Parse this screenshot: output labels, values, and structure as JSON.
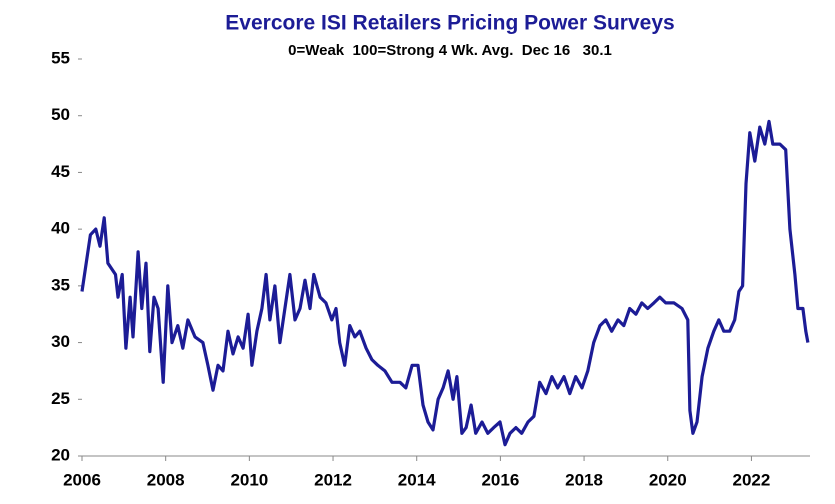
{
  "chart_data": {
    "type": "line",
    "title": "Evercore ISI Retailers Pricing Power Surveys",
    "subtitle": "0=Weak  100=Strong 4 Wk. Avg.  Dec 16   30.1",
    "x": [
      2006.0,
      2006.2,
      2006.33,
      2006.43,
      2006.53,
      2006.62,
      2006.8,
      2006.86,
      2006.96,
      2007.05,
      2007.15,
      2007.22,
      2007.34,
      2007.43,
      2007.53,
      2007.62,
      2007.72,
      2007.82,
      2007.94,
      2008.05,
      2008.15,
      2008.29,
      2008.41,
      2008.53,
      2008.7,
      2008.89,
      2009.01,
      2009.13,
      2009.25,
      2009.37,
      2009.49,
      2009.61,
      2009.73,
      2009.85,
      2009.97,
      2010.06,
      2010.18,
      2010.3,
      2010.4,
      2010.49,
      2010.61,
      2010.73,
      2010.85,
      2010.97,
      2011.09,
      2011.21,
      2011.33,
      2011.45,
      2011.54,
      2011.69,
      2011.83,
      2011.97,
      2012.07,
      2012.16,
      2012.28,
      2012.4,
      2012.52,
      2012.64,
      2012.79,
      2012.93,
      2013.07,
      2013.24,
      2013.41,
      2013.6,
      2013.74,
      2013.89,
      2014.03,
      2014.15,
      2014.27,
      2014.39,
      2014.51,
      2014.63,
      2014.75,
      2014.87,
      2014.96,
      2015.08,
      2015.18,
      2015.3,
      2015.41,
      2015.56,
      2015.7,
      2015.84,
      2015.99,
      2016.11,
      2016.23,
      2016.37,
      2016.51,
      2016.66,
      2016.8,
      2016.94,
      2017.09,
      2017.23,
      2017.37,
      2017.52,
      2017.66,
      2017.8,
      2017.95,
      2018.09,
      2018.23,
      2018.38,
      2018.52,
      2018.66,
      2018.81,
      2018.95,
      2019.09,
      2019.24,
      2019.38,
      2019.52,
      2019.67,
      2019.81,
      2019.95,
      2020.15,
      2020.34,
      2020.48,
      2020.53,
      2020.6,
      2020.7,
      2020.82,
      2020.96,
      2021.1,
      2021.22,
      2021.34,
      2021.48,
      2021.6,
      2021.7,
      2021.79,
      2021.87,
      2021.96,
      2022.08,
      2022.2,
      2022.32,
      2022.42,
      2022.51,
      2022.68,
      2022.82,
      2022.92,
      2023.04,
      2023.11,
      2023.23,
      2023.3,
      2023.35
    ],
    "series": [
      {
        "name": "Pricing Power",
        "color": "#1c1c96",
        "values": [
          34.5,
          39.5,
          40,
          38.5,
          41,
          37,
          36,
          34,
          36,
          29.5,
          34,
          30.5,
          38,
          33,
          37,
          29.2,
          34,
          33,
          26.5,
          35,
          30,
          31.5,
          29.5,
          32,
          30.5,
          30,
          28,
          25.8,
          28,
          27.5,
          31,
          29,
          30.5,
          29.5,
          32.5,
          28,
          31,
          33,
          36,
          32,
          35,
          30,
          33,
          36,
          32,
          33,
          35.5,
          33,
          36,
          34,
          33.5,
          32,
          33,
          30,
          28,
          31.5,
          30.5,
          31,
          29.5,
          28.5,
          28,
          27.5,
          26.5,
          26.5,
          26,
          28,
          28,
          24.5,
          23,
          22.3,
          25,
          26,
          27.5,
          25,
          27,
          22,
          22.5,
          24.5,
          22,
          23,
          22,
          22.5,
          23,
          21,
          22,
          22.5,
          22,
          23,
          23.5,
          26.5,
          25.5,
          27,
          26,
          27,
          25.5,
          27,
          26,
          27.5,
          30,
          31.5,
          32,
          31,
          32,
          31.5,
          33,
          32.5,
          33.5,
          33,
          33.5,
          34,
          33.5,
          33.5,
          33,
          32,
          24,
          22,
          23,
          27,
          29.5,
          31,
          32,
          31,
          31,
          32,
          34.5,
          35,
          44,
          48.5,
          46,
          49,
          47.5,
          49.5,
          47.5,
          47.5,
          47,
          40,
          36,
          33,
          33,
          31,
          30
        ]
      }
    ],
    "xlim": [
      2006,
      2023.4
    ],
    "xticks": [
      2006,
      2008,
      2010,
      2012,
      2014,
      2016,
      2018,
      2020,
      2022
    ],
    "ylim": [
      20,
      55
    ],
    "yticks": [
      20,
      25,
      30,
      35,
      40,
      45,
      50,
      55
    ],
    "grid": false
  }
}
